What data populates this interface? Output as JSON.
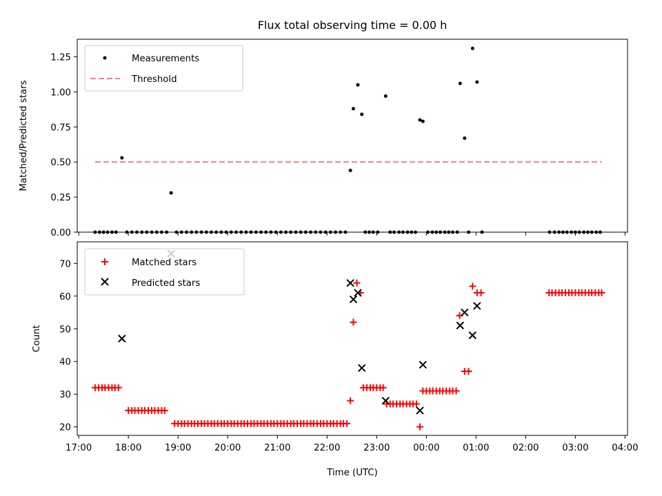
{
  "chart_data": [
    {
      "type": "scatter",
      "title": "Flux total observing time = 0.00 h",
      "ylabel": "Matched/Predicted stars",
      "ylim": [
        0.0,
        1.375
      ],
      "yticks": [
        "0.00",
        "0.25",
        "0.50",
        "0.75",
        "1.00",
        "1.25"
      ],
      "legend_position": "top-left",
      "threshold": {
        "name": "Threshold",
        "y": 0.5,
        "x_range": [
          17.33,
          27.53
        ],
        "color": "#ff7f7f",
        "style": "dashed"
      },
      "series": [
        {
          "name": "Measurements",
          "color": "#000000",
          "marker": "dot",
          "points": [
            [
              17.33,
              0
            ],
            [
              17.42,
              0
            ],
            [
              17.5,
              0
            ],
            [
              17.58,
              0
            ],
            [
              17.67,
              0
            ],
            [
              17.75,
              0
            ],
            [
              17.87,
              0.53
            ],
            [
              17.97,
              0
            ],
            [
              18.07,
              0
            ],
            [
              18.17,
              0
            ],
            [
              18.27,
              0
            ],
            [
              18.37,
              0
            ],
            [
              18.47,
              0
            ],
            [
              18.57,
              0
            ],
            [
              18.67,
              0
            ],
            [
              18.77,
              0
            ],
            [
              18.86,
              0.28
            ],
            [
              18.97,
              0
            ],
            [
              19.07,
              0
            ],
            [
              19.17,
              0
            ],
            [
              19.27,
              0
            ],
            [
              19.37,
              0
            ],
            [
              19.47,
              0
            ],
            [
              19.57,
              0
            ],
            [
              19.67,
              0
            ],
            [
              19.77,
              0
            ],
            [
              19.87,
              0
            ],
            [
              19.97,
              0
            ],
            [
              20.07,
              0
            ],
            [
              20.17,
              0
            ],
            [
              20.27,
              0
            ],
            [
              20.37,
              0
            ],
            [
              20.47,
              0
            ],
            [
              20.57,
              0
            ],
            [
              20.67,
              0
            ],
            [
              20.77,
              0
            ],
            [
              20.87,
              0
            ],
            [
              20.97,
              0
            ],
            [
              21.07,
              0
            ],
            [
              21.17,
              0
            ],
            [
              21.27,
              0
            ],
            [
              21.37,
              0
            ],
            [
              21.47,
              0
            ],
            [
              21.57,
              0
            ],
            [
              21.67,
              0
            ],
            [
              21.77,
              0
            ],
            [
              21.87,
              0
            ],
            [
              21.97,
              0
            ],
            [
              22.07,
              0
            ],
            [
              22.17,
              0
            ],
            [
              22.27,
              0
            ],
            [
              22.37,
              0
            ],
            [
              22.47,
              0.44
            ],
            [
              22.53,
              0.88
            ],
            [
              22.62,
              1.05
            ],
            [
              22.7,
              0.84
            ],
            [
              22.77,
              0
            ],
            [
              22.85,
              0
            ],
            [
              22.93,
              0
            ],
            [
              23.02,
              0
            ],
            [
              23.18,
              0.97
            ],
            [
              23.27,
              0
            ],
            [
              23.35,
              0
            ],
            [
              23.45,
              0
            ],
            [
              23.53,
              0
            ],
            [
              23.62,
              0
            ],
            [
              23.7,
              0
            ],
            [
              23.78,
              0
            ],
            [
              23.87,
              0.8
            ],
            [
              23.93,
              0.79
            ],
            [
              24.03,
              0
            ],
            [
              24.12,
              0
            ],
            [
              24.2,
              0
            ],
            [
              24.28,
              0
            ],
            [
              24.37,
              0
            ],
            [
              24.45,
              0
            ],
            [
              24.53,
              0
            ],
            [
              24.62,
              0
            ],
            [
              24.68,
              1.06
            ],
            [
              24.77,
              0.67
            ],
            [
              24.85,
              0
            ],
            [
              24.93,
              1.31
            ],
            [
              25.02,
              1.07
            ],
            [
              25.12,
              0
            ],
            [
              26.48,
              0
            ],
            [
              26.58,
              0
            ],
            [
              26.67,
              0
            ],
            [
              26.75,
              0
            ],
            [
              26.83,
              0
            ],
            [
              26.92,
              0
            ],
            [
              27.0,
              0
            ],
            [
              27.08,
              0
            ],
            [
              27.17,
              0
            ],
            [
              27.25,
              0
            ],
            [
              27.33,
              0
            ],
            [
              27.42,
              0
            ],
            [
              27.5,
              0
            ]
          ]
        }
      ]
    },
    {
      "type": "scatter",
      "xlabel": "Time (UTC)",
      "ylabel": "Count",
      "xlim": [
        16.97,
        28.05
      ],
      "ylim": [
        17.4,
        76.6
      ],
      "xticks": [
        "17:00",
        "18:00",
        "19:00",
        "20:00",
        "21:00",
        "22:00",
        "23:00",
        "00:00",
        "01:00",
        "02:00",
        "03:00",
        "04:00"
      ],
      "yticks": [
        "20",
        "30",
        "40",
        "50",
        "60",
        "70"
      ],
      "legend_position": "top-left",
      "series": [
        {
          "name": "Matched stars",
          "color": "#ff0000",
          "marker": "plus",
          "points": [
            [
              17.33,
              32
            ],
            [
              17.4,
              32
            ],
            [
              17.47,
              32
            ],
            [
              17.53,
              32
            ],
            [
              17.6,
              32
            ],
            [
              17.67,
              32
            ],
            [
              17.73,
              32
            ],
            [
              17.8,
              32
            ],
            [
              18.0,
              25
            ],
            [
              18.07,
              25
            ],
            [
              18.13,
              25
            ],
            [
              18.2,
              25
            ],
            [
              18.27,
              25
            ],
            [
              18.33,
              25
            ],
            [
              18.4,
              25
            ],
            [
              18.47,
              25
            ],
            [
              18.53,
              25
            ],
            [
              18.6,
              25
            ],
            [
              18.67,
              25
            ],
            [
              18.73,
              25
            ],
            [
              18.93,
              21
            ],
            [
              19.0,
              21
            ],
            [
              19.07,
              21
            ],
            [
              19.13,
              21
            ],
            [
              19.2,
              21
            ],
            [
              19.27,
              21
            ],
            [
              19.33,
              21
            ],
            [
              19.4,
              21
            ],
            [
              19.47,
              21
            ],
            [
              19.53,
              21
            ],
            [
              19.6,
              21
            ],
            [
              19.67,
              21
            ],
            [
              19.73,
              21
            ],
            [
              19.8,
              21
            ],
            [
              19.87,
              21
            ],
            [
              19.93,
              21
            ],
            [
              20.0,
              21
            ],
            [
              20.07,
              21
            ],
            [
              20.13,
              21
            ],
            [
              20.2,
              21
            ],
            [
              20.27,
              21
            ],
            [
              20.33,
              21
            ],
            [
              20.4,
              21
            ],
            [
              20.47,
              21
            ],
            [
              20.53,
              21
            ],
            [
              20.6,
              21
            ],
            [
              20.67,
              21
            ],
            [
              20.73,
              21
            ],
            [
              20.8,
              21
            ],
            [
              20.87,
              21
            ],
            [
              20.93,
              21
            ],
            [
              21.0,
              21
            ],
            [
              21.07,
              21
            ],
            [
              21.13,
              21
            ],
            [
              21.2,
              21
            ],
            [
              21.27,
              21
            ],
            [
              21.33,
              21
            ],
            [
              21.4,
              21
            ],
            [
              21.47,
              21
            ],
            [
              21.53,
              21
            ],
            [
              21.6,
              21
            ],
            [
              21.67,
              21
            ],
            [
              21.73,
              21
            ],
            [
              21.8,
              21
            ],
            [
              21.87,
              21
            ],
            [
              21.93,
              21
            ],
            [
              22.0,
              21
            ],
            [
              22.07,
              21
            ],
            [
              22.13,
              21
            ],
            [
              22.2,
              21
            ],
            [
              22.27,
              21
            ],
            [
              22.33,
              21
            ],
            [
              22.4,
              21
            ],
            [
              22.47,
              28
            ],
            [
              22.53,
              52
            ],
            [
              22.6,
              64
            ],
            [
              22.67,
              61
            ],
            [
              22.73,
              32
            ],
            [
              22.8,
              32
            ],
            [
              22.87,
              32
            ],
            [
              22.93,
              32
            ],
            [
              23.0,
              32
            ],
            [
              23.07,
              32
            ],
            [
              23.13,
              32
            ],
            [
              23.2,
              27
            ],
            [
              23.27,
              27
            ],
            [
              23.33,
              27
            ],
            [
              23.4,
              27
            ],
            [
              23.47,
              27
            ],
            [
              23.53,
              27
            ],
            [
              23.6,
              27
            ],
            [
              23.67,
              27
            ],
            [
              23.73,
              27
            ],
            [
              23.8,
              27
            ],
            [
              23.87,
              20
            ],
            [
              23.93,
              31
            ],
            [
              24.0,
              31
            ],
            [
              24.07,
              31
            ],
            [
              24.13,
              31
            ],
            [
              24.2,
              31
            ],
            [
              24.27,
              31
            ],
            [
              24.33,
              31
            ],
            [
              24.4,
              31
            ],
            [
              24.47,
              31
            ],
            [
              24.53,
              31
            ],
            [
              24.6,
              31
            ],
            [
              24.67,
              54
            ],
            [
              24.77,
              37
            ],
            [
              24.85,
              37
            ],
            [
              24.93,
              63
            ],
            [
              25.02,
              61
            ],
            [
              25.1,
              61
            ],
            [
              26.47,
              61
            ],
            [
              26.53,
              61
            ],
            [
              26.6,
              61
            ],
            [
              26.67,
              61
            ],
            [
              26.73,
              61
            ],
            [
              26.8,
              61
            ],
            [
              26.87,
              61
            ],
            [
              26.93,
              61
            ],
            [
              27.0,
              61
            ],
            [
              27.07,
              61
            ],
            [
              27.13,
              61
            ],
            [
              27.2,
              61
            ],
            [
              27.27,
              61
            ],
            [
              27.33,
              61
            ],
            [
              27.4,
              61
            ],
            [
              27.47,
              61
            ],
            [
              27.53,
              61
            ]
          ]
        },
        {
          "name": "Predicted stars",
          "color": "#000000",
          "marker": "x",
          "points": [
            [
              17.87,
              47
            ],
            [
              18.86,
              73
            ],
            [
              22.47,
              64
            ],
            [
              22.53,
              59
            ],
            [
              22.62,
              61
            ],
            [
              22.7,
              38
            ],
            [
              23.18,
              28
            ],
            [
              23.87,
              25
            ],
            [
              23.93,
              39
            ],
            [
              24.68,
              51
            ],
            [
              24.77,
              55
            ],
            [
              24.93,
              48
            ],
            [
              25.02,
              57
            ]
          ]
        }
      ]
    }
  ]
}
